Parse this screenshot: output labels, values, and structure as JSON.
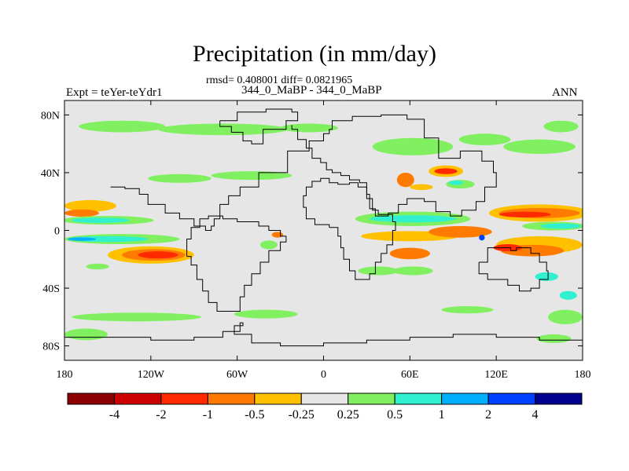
{
  "chart_data": {
    "type": "heatmap",
    "title": "Precipitation (in mm/day)",
    "stats_line": "rmsd= 0.408001 diff= 0.0821965",
    "subtitle": "344_0_MaBP - 344_0_MaBP",
    "left_label": "Expt = teYer-teYdr1",
    "right_label": "ANN",
    "xlim": [
      -180,
      180
    ],
    "ylim": [
      -90,
      90
    ],
    "x_ticks": [
      {
        "value": -180,
        "label": "180"
      },
      {
        "value": -120,
        "label": "120W"
      },
      {
        "value": -60,
        "label": "60W"
      },
      {
        "value": 0,
        "label": "0"
      },
      {
        "value": 60,
        "label": "60E"
      },
      {
        "value": 120,
        "label": "120E"
      },
      {
        "value": 180,
        "label": "180"
      }
    ],
    "y_ticks": [
      {
        "value": 80,
        "label": "80N"
      },
      {
        "value": 40,
        "label": "40N"
      },
      {
        "value": 0,
        "label": "0"
      },
      {
        "value": -40,
        "label": "40S"
      },
      {
        "value": -80,
        "label": "80S"
      }
    ],
    "background_color": "#e6e6e6",
    "colorbar": {
      "levels": [
        "-4",
        "-2",
        "-1",
        "-0.5",
        "-0.25",
        "0.25",
        "0.5",
        "1",
        "2",
        "4"
      ],
      "colors": [
        "#8b0000",
        "#cc0000",
        "#ff2a00",
        "#ff7a00",
        "#ffc000",
        "#e6e6e6",
        "#80f060",
        "#30f0d0",
        "#00b0ff",
        "#0040ff",
        "#000090"
      ]
    },
    "anomalies": [
      {
        "lon": -162,
        "lat": 17,
        "rx": 18,
        "ry": 4,
        "color": "#ffc000"
      },
      {
        "lon": -168,
        "lat": 12,
        "rx": 12,
        "ry": 2.5,
        "color": "#ff7a00"
      },
      {
        "lon": -150,
        "lat": 7,
        "rx": 32,
        "ry": 3,
        "color": "#80f060"
      },
      {
        "lon": -155,
        "lat": 7,
        "rx": 20,
        "ry": 1.8,
        "color": "#30f0d0"
      },
      {
        "lon": -140,
        "lat": -6,
        "rx": 40,
        "ry": 3.5,
        "color": "#80f060"
      },
      {
        "lon": -150,
        "lat": -6,
        "rx": 28,
        "ry": 2,
        "color": "#30f0d0"
      },
      {
        "lon": -168,
        "lat": -6,
        "rx": 10,
        "ry": 1.2,
        "color": "#00b0ff"
      },
      {
        "lon": -120,
        "lat": -17,
        "rx": 30,
        "ry": 6,
        "color": "#ffc000"
      },
      {
        "lon": -118,
        "lat": -17,
        "rx": 22,
        "ry": 4,
        "color": "#ff7a00"
      },
      {
        "lon": -115,
        "lat": -17,
        "rx": 14,
        "ry": 2.5,
        "color": "#ff2a00"
      },
      {
        "lon": -157,
        "lat": -25,
        "rx": 8,
        "ry": 2,
        "color": "#80f060"
      },
      {
        "lon": -100,
        "lat": 36,
        "rx": 22,
        "ry": 3,
        "color": "#80f060"
      },
      {
        "lon": -50,
        "lat": 38,
        "rx": 28,
        "ry": 3,
        "color": "#80f060"
      },
      {
        "lon": -140,
        "lat": 72,
        "rx": 30,
        "ry": 4,
        "color": "#80f060"
      },
      {
        "lon": -70,
        "lat": 70,
        "rx": 45,
        "ry": 4,
        "color": "#80f060"
      },
      {
        "lon": -10,
        "lat": 71,
        "rx": 20,
        "ry": 3,
        "color": "#80f060"
      },
      {
        "lon": 62,
        "lat": 58,
        "rx": 28,
        "ry": 6,
        "color": "#80f060"
      },
      {
        "lon": 112,
        "lat": 63,
        "rx": 18,
        "ry": 4,
        "color": "#80f060"
      },
      {
        "lon": 150,
        "lat": 58,
        "rx": 25,
        "ry": 5,
        "color": "#80f060"
      },
      {
        "lon": 165,
        "lat": 72,
        "rx": 12,
        "ry": 4,
        "color": "#80f060"
      },
      {
        "lon": 85,
        "lat": 41,
        "rx": 12,
        "ry": 4,
        "color": "#ffc000"
      },
      {
        "lon": 85,
        "lat": 41,
        "rx": 8,
        "ry": 2,
        "color": "#ff2a00"
      },
      {
        "lon": 95,
        "lat": 32,
        "rx": 10,
        "ry": 3,
        "color": "#80f060"
      },
      {
        "lon": 92,
        "lat": 33,
        "rx": 5,
        "ry": 1.5,
        "color": "#30f0d0"
      },
      {
        "lon": 57,
        "lat": 35,
        "rx": 6,
        "ry": 5,
        "color": "#ff7a00"
      },
      {
        "lon": 68,
        "lat": 30,
        "rx": 8,
        "ry": 2,
        "color": "#ffc000"
      },
      {
        "lon": 62,
        "lat": 8,
        "rx": 40,
        "ry": 5,
        "color": "#80f060"
      },
      {
        "lon": 62,
        "lat": 8,
        "rx": 30,
        "ry": 2.5,
        "color": "#30f0d0"
      },
      {
        "lon": 60,
        "lat": -4,
        "rx": 34,
        "ry": 3.5,
        "color": "#ffc000"
      },
      {
        "lon": 95,
        "lat": -1,
        "rx": 22,
        "ry": 4,
        "color": "#ff7a00"
      },
      {
        "lon": 60,
        "lat": -16,
        "rx": 14,
        "ry": 4,
        "color": "#ff7a00"
      },
      {
        "lon": 38,
        "lat": -28,
        "rx": 14,
        "ry": 3,
        "color": "#80f060"
      },
      {
        "lon": 62,
        "lat": -28,
        "rx": 14,
        "ry": 3,
        "color": "#80f060"
      },
      {
        "lon": 150,
        "lat": 12,
        "rx": 35,
        "ry": 6,
        "color": "#ffc000"
      },
      {
        "lon": 150,
        "lat": 12,
        "rx": 28,
        "ry": 3.5,
        "color": "#ff7a00"
      },
      {
        "lon": 140,
        "lat": 11,
        "rx": 18,
        "ry": 2,
        "color": "#ff2a00"
      },
      {
        "lon": 160,
        "lat": 3,
        "rx": 22,
        "ry": 3,
        "color": "#80f060"
      },
      {
        "lon": 165,
        "lat": 3,
        "rx": 14,
        "ry": 1.8,
        "color": "#30f0d0"
      },
      {
        "lon": 150,
        "lat": -10,
        "rx": 30,
        "ry": 6,
        "color": "#ffc000"
      },
      {
        "lon": 145,
        "lat": -14,
        "rx": 22,
        "ry": 4,
        "color": "#ff7a00"
      },
      {
        "lon": 128,
        "lat": -12,
        "rx": 10,
        "ry": 2.5,
        "color": "#ff2a00"
      },
      {
        "lon": 110,
        "lat": -5,
        "rx": 2,
        "ry": 2,
        "color": "#0040ff"
      },
      {
        "lon": 155,
        "lat": -32,
        "rx": 8,
        "ry": 3,
        "color": "#30f0d0"
      },
      {
        "lon": 170,
        "lat": -45,
        "rx": 6,
        "ry": 3,
        "color": "#30f0d0"
      },
      {
        "lon": 168,
        "lat": -60,
        "rx": 12,
        "ry": 5,
        "color": "#80f060"
      },
      {
        "lon": -130,
        "lat": -60,
        "rx": 45,
        "ry": 3,
        "color": "#80f060"
      },
      {
        "lon": -165,
        "lat": -72,
        "rx": 15,
        "ry": 4,
        "color": "#80f060"
      },
      {
        "lon": -40,
        "lat": -58,
        "rx": 22,
        "ry": 3,
        "color": "#80f060"
      },
      {
        "lon": 100,
        "lat": -55,
        "rx": 18,
        "ry": 2.5,
        "color": "#80f060"
      },
      {
        "lon": 160,
        "lat": -75,
        "rx": 12,
        "ry": 3,
        "color": "#80f060"
      },
      {
        "lon": -38,
        "lat": -10,
        "rx": 6,
        "ry": 3,
        "color": "#80f060"
      },
      {
        "lon": -32,
        "lat": -3,
        "rx": 4,
        "ry": 2,
        "color": "#ff7a00"
      }
    ],
    "coastlines": [
      {
        "name": "north-america",
        "points": [
          [
            -148,
            30
          ],
          [
            -138,
            29
          ],
          [
            -128,
            25
          ],
          [
            -122,
            18
          ],
          [
            -110,
            12
          ],
          [
            -100,
            8
          ],
          [
            -90,
            3
          ],
          [
            -82,
            0
          ],
          [
            -78,
            3
          ],
          [
            -76,
            8
          ],
          [
            -72,
            18
          ],
          [
            -66,
            24
          ],
          [
            -58,
            30
          ],
          [
            -45,
            40
          ],
          [
            -25,
            55
          ],
          [
            -10,
            62
          ],
          [
            0,
            67
          ],
          [
            4,
            70
          ],
          [
            6,
            76
          ],
          [
            20,
            79
          ],
          [
            40,
            80
          ],
          [
            58,
            77
          ],
          [
            70,
            64
          ],
          [
            80,
            50
          ],
          [
            95,
            55
          ],
          [
            110,
            48
          ],
          [
            118,
            40
          ],
          [
            120,
            30
          ],
          [
            112,
            20
          ],
          [
            106,
            14
          ],
          [
            96,
            10
          ],
          [
            88,
            13
          ],
          [
            78,
            20
          ],
          [
            70,
            22
          ],
          [
            58,
            18
          ],
          [
            52,
            12
          ],
          [
            45,
            10
          ],
          [
            40,
            10
          ],
          [
            36,
            15
          ],
          [
            32,
            25
          ],
          [
            30,
            33
          ],
          [
            25,
            35
          ],
          [
            18,
            38
          ],
          [
            12,
            40
          ],
          [
            6,
            42
          ],
          [
            2,
            47
          ],
          [
            -2,
            50
          ],
          [
            -8,
            57
          ],
          [
            -12,
            63
          ],
          [
            -18,
            70
          ],
          [
            -22,
            73
          ]
        ]
      },
      {
        "name": "south-america",
        "points": [
          [
            -95,
            -18
          ],
          [
            -92,
            -24
          ],
          [
            -88,
            -34
          ],
          [
            -84,
            -42
          ],
          [
            -80,
            -50
          ],
          [
            -74,
            -56
          ],
          [
            -64,
            -56
          ],
          [
            -58,
            -46
          ],
          [
            -55,
            -38
          ],
          [
            -50,
            -30
          ],
          [
            -44,
            -22
          ],
          [
            -38,
            -14
          ],
          [
            -30,
            -8
          ],
          [
            -26,
            -4
          ],
          [
            -30,
            0
          ],
          [
            -38,
            3
          ],
          [
            -45,
            6
          ],
          [
            -52,
            6
          ],
          [
            -60,
            8
          ],
          [
            -70,
            10
          ],
          [
            -80,
            8
          ],
          [
            -86,
            2
          ],
          [
            -92,
            -6
          ],
          [
            -95,
            -18
          ]
        ]
      },
      {
        "name": "africa",
        "points": [
          [
            4,
            2
          ],
          [
            10,
            -4
          ],
          [
            12,
            -12
          ],
          [
            14,
            -20
          ],
          [
            18,
            -28
          ],
          [
            22,
            -34
          ],
          [
            26,
            -34
          ],
          [
            32,
            -30
          ],
          [
            36,
            -22
          ],
          [
            40,
            -16
          ],
          [
            44,
            -10
          ],
          [
            48,
            0
          ],
          [
            50,
            6
          ],
          [
            48,
            11
          ],
          [
            42,
            11
          ],
          [
            38,
            14
          ],
          [
            34,
            22
          ],
          [
            30,
            30
          ],
          [
            24,
            33
          ],
          [
            18,
            32
          ],
          [
            10,
            33
          ],
          [
            4,
            36
          ],
          [
            -2,
            34
          ],
          [
            -8,
            30
          ],
          [
            -12,
            24
          ],
          [
            -14,
            16
          ],
          [
            -12,
            8
          ],
          [
            -6,
            4
          ],
          [
            0,
            4
          ],
          [
            4,
            2
          ]
        ]
      },
      {
        "name": "australia",
        "points": [
          [
            108,
            -22
          ],
          [
            114,
            -12
          ],
          [
            124,
            -12
          ],
          [
            130,
            -14
          ],
          [
            134,
            -12
          ],
          [
            140,
            -12
          ],
          [
            144,
            -16
          ],
          [
            150,
            -22
          ],
          [
            155,
            -28
          ],
          [
            156,
            -34
          ],
          [
            150,
            -40
          ],
          [
            144,
            -42
          ],
          [
            136,
            -38
          ],
          [
            128,
            -34
          ],
          [
            118,
            -34
          ],
          [
            114,
            -30
          ],
          [
            108,
            -22
          ]
        ]
      },
      {
        "name": "antarctica",
        "points": [
          [
            -180,
            -74
          ],
          [
            -150,
            -74
          ],
          [
            -120,
            -76
          ],
          [
            -90,
            -74
          ],
          [
            -70,
            -70
          ],
          [
            -58,
            -64
          ],
          [
            -56,
            -66
          ],
          [
            -62,
            -72
          ],
          [
            -50,
            -78
          ],
          [
            -30,
            -80
          ],
          [
            0,
            -78
          ],
          [
            30,
            -76
          ],
          [
            60,
            -74
          ],
          [
            90,
            -72
          ],
          [
            120,
            -74
          ],
          [
            150,
            -76
          ],
          [
            180,
            -78
          ]
        ]
      },
      {
        "name": "greenland",
        "points": [
          [
            -72,
            76
          ],
          [
            -60,
            82
          ],
          [
            -40,
            84
          ],
          [
            -22,
            82
          ],
          [
            -18,
            76
          ],
          [
            -26,
            70
          ],
          [
            -42,
            60
          ],
          [
            -50,
            62
          ],
          [
            -56,
            68
          ],
          [
            -64,
            72
          ],
          [
            -72,
            76
          ]
        ]
      }
    ]
  }
}
